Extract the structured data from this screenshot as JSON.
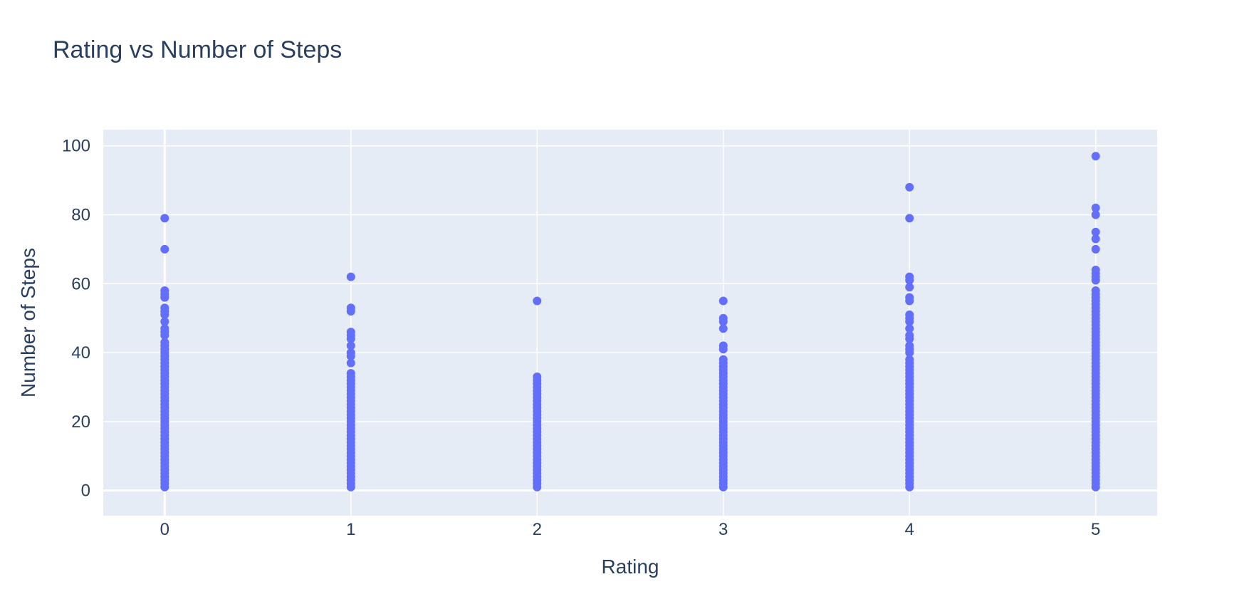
{
  "chart_data": {
    "type": "scatter",
    "title": "Rating vs Number of Steps",
    "xlabel": "Rating",
    "ylabel": "Number of Steps",
    "xlim": [
      -0.33,
      5.33
    ],
    "ylim": [
      -7.3,
      104.7
    ],
    "xticks": [
      "0",
      "1",
      "2",
      "3",
      "4",
      "5"
    ],
    "yticks": [
      "0",
      "20",
      "40",
      "60",
      "80",
      "100"
    ],
    "grid": true,
    "marker_color": "#636efa",
    "plot_bg": "#e5ecf6",
    "grid_color": "#ffffff",
    "text_color": "#2a3f5f",
    "series": [
      {
        "points": [
          {
            "x": 0,
            "y": [
              1,
              2,
              3,
              4,
              5,
              6,
              7,
              8,
              9,
              10,
              11,
              12,
              13,
              14,
              15,
              16,
              17,
              18,
              19,
              20,
              21,
              22,
              23,
              24,
              25,
              26,
              27,
              28,
              29,
              30,
              31,
              32,
              33,
              34,
              35,
              36,
              37,
              38,
              39,
              40,
              41,
              42,
              43,
              45,
              46,
              47,
              49,
              51,
              52,
              53,
              56,
              57,
              58,
              70,
              79
            ]
          },
          {
            "x": 1,
            "y": [
              1,
              2,
              3,
              4,
              5,
              6,
              7,
              8,
              9,
              10,
              11,
              12,
              13,
              14,
              15,
              16,
              17,
              18,
              19,
              20,
              21,
              22,
              23,
              24,
              25,
              26,
              27,
              28,
              29,
              30,
              31,
              32,
              33,
              34,
              37,
              39,
              40,
              42,
              44,
              45,
              46,
              52,
              53,
              62
            ]
          },
          {
            "x": 2,
            "y": [
              1,
              2,
              3,
              4,
              5,
              6,
              7,
              8,
              9,
              10,
              11,
              12,
              13,
              14,
              15,
              16,
              17,
              18,
              19,
              20,
              21,
              22,
              23,
              24,
              25,
              26,
              27,
              28,
              29,
              30,
              31,
              32,
              33,
              55
            ]
          },
          {
            "x": 3,
            "y": [
              1,
              2,
              3,
              4,
              5,
              6,
              7,
              8,
              9,
              10,
              11,
              12,
              13,
              14,
              15,
              16,
              17,
              18,
              19,
              20,
              21,
              22,
              23,
              24,
              25,
              26,
              27,
              28,
              29,
              30,
              31,
              32,
              33,
              34,
              35,
              36,
              37,
              38,
              41,
              42,
              47,
              49,
              50,
              55
            ]
          },
          {
            "x": 4,
            "y": [
              1,
              2,
              3,
              4,
              5,
              6,
              7,
              8,
              9,
              10,
              11,
              12,
              13,
              14,
              15,
              16,
              17,
              18,
              19,
              20,
              21,
              22,
              23,
              24,
              25,
              26,
              27,
              28,
              29,
              30,
              31,
              32,
              33,
              34,
              35,
              36,
              37,
              38,
              40,
              41,
              42,
              44,
              45,
              47,
              49,
              50,
              51,
              55,
              56,
              59,
              61,
              62,
              79,
              88
            ]
          },
          {
            "x": 5,
            "y": [
              1,
              2,
              3,
              4,
              5,
              6,
              7,
              8,
              9,
              10,
              11,
              12,
              13,
              14,
              15,
              16,
              17,
              18,
              19,
              20,
              21,
              22,
              23,
              24,
              25,
              26,
              27,
              28,
              29,
              30,
              31,
              32,
              33,
              34,
              35,
              36,
              37,
              38,
              39,
              40,
              41,
              42,
              43,
              44,
              45,
              46,
              47,
              48,
              49,
              50,
              51,
              52,
              53,
              54,
              55,
              56,
              57,
              58,
              61,
              62,
              63,
              64,
              70,
              73,
              75,
              80,
              82,
              97
            ]
          }
        ]
      }
    ]
  }
}
